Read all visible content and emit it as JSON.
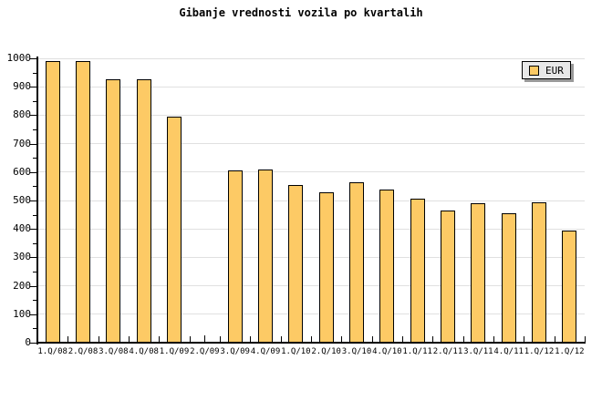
{
  "title": "Gibanje vrednosti vozila po kvartalih",
  "legend": {
    "label": "EUR"
  },
  "colors": {
    "bar_fill": "#FDCA65",
    "bar_border": "#000000",
    "grid": "#E0E0E0",
    "axis": "#000000",
    "legend_bg": "#E8E8E8",
    "legend_shadow": "#999999",
    "background": "#FFFFFF",
    "text": "#000000"
  },
  "chart_data": {
    "type": "bar",
    "title": "Gibanje vrednosti vozila po kvartalih",
    "categories": [
      "1.Q/08",
      "2.Q/08",
      "3.Q/08",
      "4.Q/08",
      "1.Q/09",
      "2.Q/09",
      "3.Q/09",
      "4.Q/09",
      "1.Q/10",
      "2.Q/10",
      "3.Q/10",
      "4.Q/10",
      "1.Q/11",
      "2.Q/11",
      "3.Q/11",
      "4.Q/11",
      "1.Q/12",
      "1.Q/12"
    ],
    "series": [
      {
        "name": "EUR",
        "values": [
          990,
          990,
          925,
          925,
          795,
          null,
          605,
          610,
          555,
          530,
          565,
          540,
          505,
          465,
          490,
          455,
          495,
          395
        ]
      }
    ],
    "xlabel": "",
    "ylabel": "",
    "ylim": [
      0,
      1000
    ],
    "ytick_step": 100,
    "ytick_minor_step": 50,
    "ytick_labels": [
      "0",
      "100",
      "200",
      "300",
      "400",
      "500",
      "600",
      "700",
      "800",
      "900",
      "1000"
    ],
    "grid": "horizontal-major",
    "legend_position": "top-right"
  }
}
